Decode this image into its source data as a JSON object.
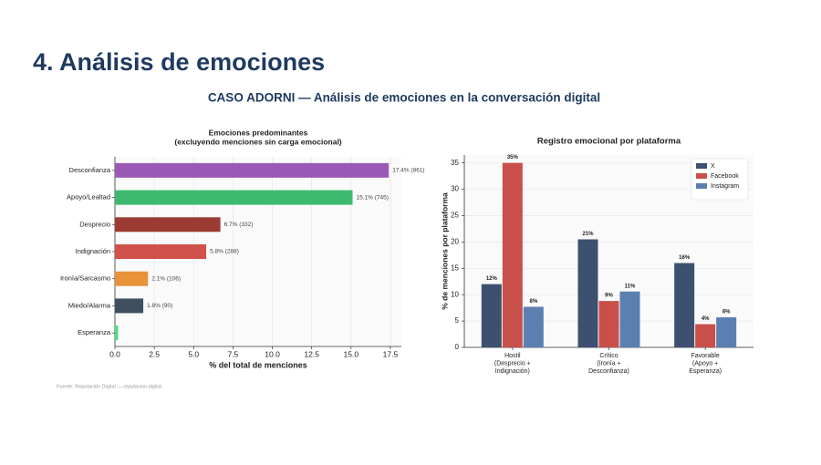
{
  "title": "4. Análisis de emociones",
  "subtitle": "CASO ADORNI — Análisis de emociones en la conversación digital",
  "source": "Fuente: Reputación Digital — reputacion.digital",
  "chart_data": [
    {
      "type": "barh",
      "title": [
        "Emociones predominantes",
        "(excluyendo menciones sin carga emocional)"
      ],
      "xlabel": "% del total de menciones",
      "categories": [
        "Desconfianza",
        "Apoyo/Lealtad",
        "Desprecio",
        "Indignación",
        "Ironía/Sarcasmo",
        "Miedo/Alarma",
        "Esperanza"
      ],
      "values": [
        17.4,
        15.1,
        6.7,
        5.8,
        2.1,
        1.8,
        0.2
      ],
      "value_labels": [
        "17.4% (861)",
        "15.1% (745)",
        "6.7% (332)",
        "5.8% (288)",
        "2.1% (106)",
        "1.8% (90)",
        null
      ],
      "colors": [
        "#9b59b6",
        "#3dba6e",
        "#9c3b32",
        "#d0524a",
        "#e8923a",
        "#3f4f60",
        "#4ade80"
      ],
      "xlim": [
        0,
        18.2
      ],
      "xticks": [
        {
          "value": 0,
          "label": "0.0"
        },
        2.5,
        {
          "value": 5,
          "label": "5.0"
        },
        7.5,
        {
          "value": 10,
          "label": "10.0"
        },
        12.5,
        {
          "value": 15,
          "label": "15.0"
        },
        17.5
      ],
      "grid": true
    },
    {
      "type": "bar",
      "title": "Registro emocional por plataforma",
      "ylabel": "% de menciones por plataforma",
      "categories": [
        [
          "Hostil",
          "(Desprecio +",
          "Indignación)"
        ],
        [
          "Crítico",
          "(Ironía +",
          "Desconfianza)"
        ],
        [
          "Favorable",
          "(Apoyo +",
          "Esperanza)"
        ]
      ],
      "series": [
        {
          "name": "X",
          "color": "#3d5070",
          "values": [
            12,
            20.5,
            16
          ],
          "value_labels": [
            "12%",
            "21%",
            "16%"
          ]
        },
        {
          "name": "Facebook",
          "color": "#c9504a",
          "values": [
            35,
            8.8,
            4.4
          ],
          "value_labels": [
            "35%",
            "9%",
            "4%"
          ]
        },
        {
          "name": "Instagram",
          "color": "#5b7fb0",
          "values": [
            7.7,
            10.6,
            5.7
          ],
          "value_labels": [
            "8%",
            "11%",
            "6%"
          ]
        }
      ],
      "ylim": [
        0,
        36.5
      ],
      "yticks": [
        0,
        5,
        10,
        15,
        20,
        25,
        30,
        35
      ],
      "grid": true,
      "legend": "upper-right"
    }
  ]
}
